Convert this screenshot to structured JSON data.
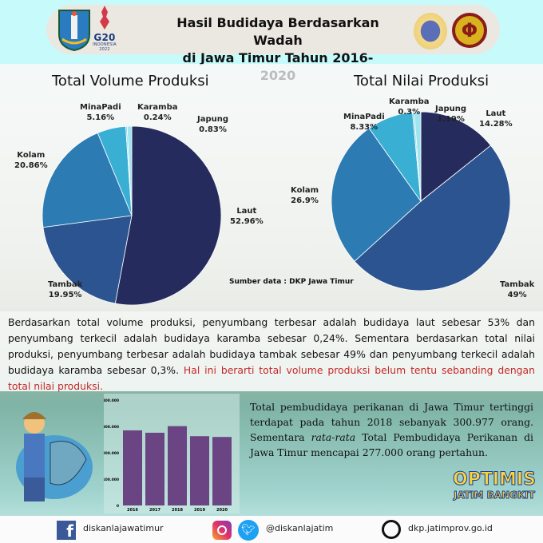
{
  "header": {
    "title_line1": "Hasil Budidaya Berdasarkan Wadah",
    "title_line2": "di Jawa Timur Tahun 2016-2020",
    "g20_logo_text": "G20 INDONESIA 2022"
  },
  "chart_data": [
    {
      "type": "pie",
      "title": "Total Volume Produksi",
      "labels": [
        "Laut",
        "Tambak",
        "Kolam",
        "MinaPadi",
        "Karamba",
        "Japung"
      ],
      "values": [
        52.96,
        19.95,
        20.86,
        5.16,
        0.24,
        0.83
      ],
      "display": [
        "52.96%",
        "19.95%",
        "20.86%",
        "5.16%",
        "0.24%",
        "0.83%"
      ],
      "colors": [
        "#262b5e",
        "#2c5491",
        "#2c7bb2",
        "#3aafd4",
        "#6cd0e6",
        "#9fe4ef"
      ]
    },
    {
      "type": "pie",
      "title": "Total Nilai Produksi",
      "labels": [
        "Laut",
        "Tambak",
        "Kolam",
        "MinaPadi",
        "Karamba",
        "Japung"
      ],
      "values": [
        14.28,
        49,
        26.9,
        8.33,
        0.3,
        1.19
      ],
      "display": [
        "14.28%",
        "49%",
        "26.9%",
        "8.33%",
        "0.3%",
        "1.19%"
      ],
      "colors": [
        "#262b5e",
        "#2c5491",
        "#2c7bb2",
        "#3aafd4",
        "#6cd0e6",
        "#9fe4ef"
      ]
    },
    {
      "type": "bar",
      "categories": [
        "2016",
        "2017",
        "2018",
        "2019",
        "2020"
      ],
      "values": [
        285000,
        276000,
        300977,
        263000,
        260000
      ],
      "ylim": [
        0,
        400000
      ],
      "yticks": [
        "0",
        "100.000",
        "200.000",
        "300.000",
        "400.000"
      ],
      "color": "#6b4583"
    }
  ],
  "source": "Sumber data : DKP Jawa Timur",
  "paragraph": {
    "text": "Berdasarkan total volume produksi, penyumbang terbesar adalah budidaya laut sebesar 53% dan penyumbang terkecil adalah budidaya karamba sebesar 0,24%. Sementara berdasarkan total nilai produksi, penyumbang terbesar adalah budidaya tambak sebesar 49% dan penyumbang terkecil adalah budidaya karamba sebesar 0,3%. ",
    "highlight": "Hal ini berarti total volume produksi belum tentu sebanding dengan total nilai produksi."
  },
  "info": {
    "part1": "Total pembudidaya perikanan di Jawa Timur tertinggi terdapat pada tahun 2018 sebanyak 300.977 orang. Sementara ",
    "italic": "rata-rata",
    "part2": " Total Pembudidaya Perikanan di Jawa Timur mencapai 277.000 orang pertahun."
  },
  "slogan": {
    "line1": "OPTIMIS",
    "line2": "JATIM BANGKIT"
  },
  "footer": {
    "facebook": "diskanlajawatimur",
    "social": "@diskanlajatim",
    "website": "dkp.jatimprov.go.id"
  }
}
